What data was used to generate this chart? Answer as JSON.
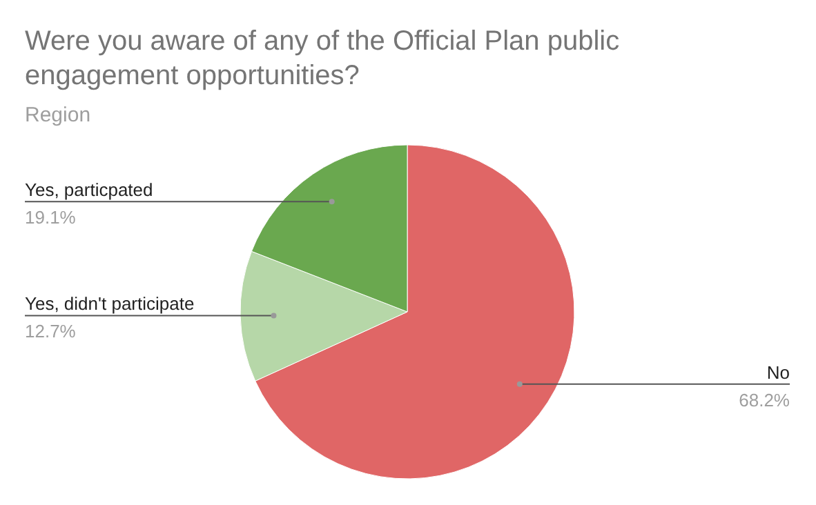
{
  "chart_data": {
    "type": "pie",
    "title": "Were you aware of any of the Official Plan public engagement opportunities?",
    "subtitle": "Region",
    "categories": [
      "No",
      "Yes, didn't participate",
      "Yes, particpated"
    ],
    "values": [
      68.2,
      12.7,
      19.1
    ],
    "colors": [
      "#e06666",
      "#b6d7a8",
      "#6aa84f"
    ],
    "value_labels": [
      "68.2%",
      "12.7%",
      "19.1%"
    ]
  }
}
